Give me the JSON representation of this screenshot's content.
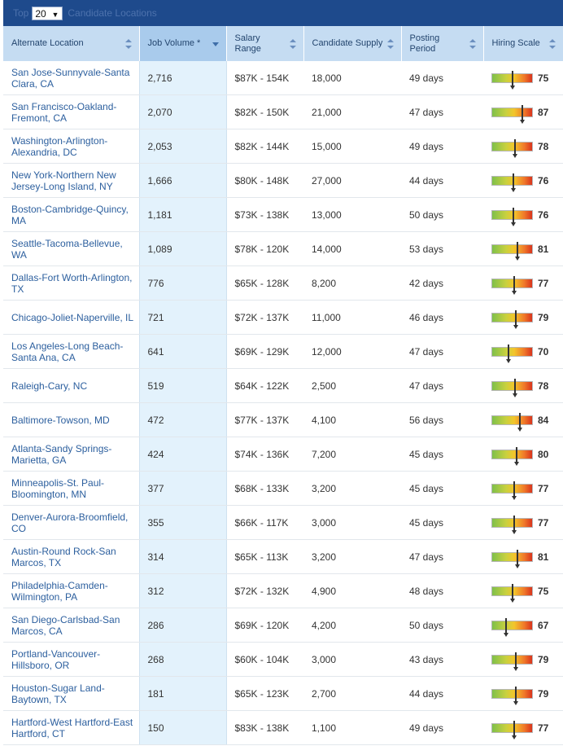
{
  "topbar": {
    "prefix": "Top",
    "selected": "20",
    "suffix": "Candidate Locations"
  },
  "columns": [
    {
      "label": "Alternate Location"
    },
    {
      "label": "Job Volume *"
    },
    {
      "label": "Salary Range"
    },
    {
      "label": "Candidate Supply"
    },
    {
      "label": "Posting Period"
    },
    {
      "label": "Hiring Scale"
    }
  ],
  "colors": {
    "header_bar": "#1e4a8c",
    "column_header": "#c5dcf2",
    "link": "#2c5f9e",
    "job_column": "#e3f2fc"
  },
  "rows": [
    {
      "location": "San Jose-Sunnyvale-Santa Clara, CA",
      "jobs": "2,716",
      "salary": "$87K - 154K",
      "supply": "18,000",
      "posting": "49 days",
      "scale": "75"
    },
    {
      "location": "San Francisco-Oakland-Fremont, CA",
      "jobs": "2,070",
      "salary": "$82K - 150K",
      "supply": "21,000",
      "posting": "47 days",
      "scale": "87"
    },
    {
      "location": "Washington-Arlington-Alexandria, DC",
      "jobs": "2,053",
      "salary": "$82K - 144K",
      "supply": "15,000",
      "posting": "49 days",
      "scale": "78"
    },
    {
      "location": "New York-Northern New Jersey-Long Island, NY",
      "jobs": "1,666",
      "salary": "$80K - 148K",
      "supply": "27,000",
      "posting": "44 days",
      "scale": "76"
    },
    {
      "location": "Boston-Cambridge-Quincy, MA",
      "jobs": "1,181",
      "salary": "$73K - 138K",
      "supply": "13,000",
      "posting": "50 days",
      "scale": "76"
    },
    {
      "location": "Seattle-Tacoma-Bellevue, WA",
      "jobs": "1,089",
      "salary": "$78K - 120K",
      "supply": "14,000",
      "posting": "53 days",
      "scale": "81"
    },
    {
      "location": "Dallas-Fort Worth-Arlington, TX",
      "jobs": "776",
      "salary": "$65K - 128K",
      "supply": "8,200",
      "posting": "42 days",
      "scale": "77"
    },
    {
      "location": "Chicago-Joliet-Naperville, IL",
      "jobs": "721",
      "salary": "$72K - 137K",
      "supply": "11,000",
      "posting": "46 days",
      "scale": "79"
    },
    {
      "location": "Los Angeles-Long Beach-Santa Ana, CA",
      "jobs": "641",
      "salary": "$69K - 129K",
      "supply": "12,000",
      "posting": "47 days",
      "scale": "70"
    },
    {
      "location": "Raleigh-Cary, NC",
      "jobs": "519",
      "salary": "$64K - 122K",
      "supply": "2,500",
      "posting": "47 days",
      "scale": "78"
    },
    {
      "location": "Baltimore-Towson, MD",
      "jobs": "472",
      "salary": "$77K - 137K",
      "supply": "4,100",
      "posting": "56 days",
      "scale": "84"
    },
    {
      "location": "Atlanta-Sandy Springs-Marietta, GA",
      "jobs": "424",
      "salary": "$74K - 136K",
      "supply": "7,200",
      "posting": "45 days",
      "scale": "80"
    },
    {
      "location": "Minneapolis-St. Paul-Bloomington, MN",
      "jobs": "377",
      "salary": "$68K - 133K",
      "supply": "3,200",
      "posting": "45 days",
      "scale": "77"
    },
    {
      "location": "Denver-Aurora-Broomfield, CO",
      "jobs": "355",
      "salary": "$66K - 117K",
      "supply": "3,000",
      "posting": "45 days",
      "scale": "77"
    },
    {
      "location": "Austin-Round Rock-San Marcos, TX",
      "jobs": "314",
      "salary": "$65K - 113K",
      "supply": "3,200",
      "posting": "47 days",
      "scale": "81"
    },
    {
      "location": "Philadelphia-Camden-Wilmington, PA",
      "jobs": "312",
      "salary": "$72K - 132K",
      "supply": "4,900",
      "posting": "48 days",
      "scale": "75"
    },
    {
      "location": "San Diego-Carlsbad-San Marcos, CA",
      "jobs": "286",
      "salary": "$69K - 120K",
      "supply": "4,200",
      "posting": "50 days",
      "scale": "67"
    },
    {
      "location": "Portland-Vancouver-Hillsboro, OR",
      "jobs": "268",
      "salary": "$60K - 104K",
      "supply": "3,000",
      "posting": "43 days",
      "scale": "79"
    },
    {
      "location": "Houston-Sugar Land-Baytown, TX",
      "jobs": "181",
      "salary": "$65K - 123K",
      "supply": "2,700",
      "posting": "44 days",
      "scale": "79"
    },
    {
      "location": "Hartford-West Hartford-East Hartford, CT",
      "jobs": "150",
      "salary": "$83K - 138K",
      "supply": "1,100",
      "posting": "49 days",
      "scale": "77"
    }
  ]
}
